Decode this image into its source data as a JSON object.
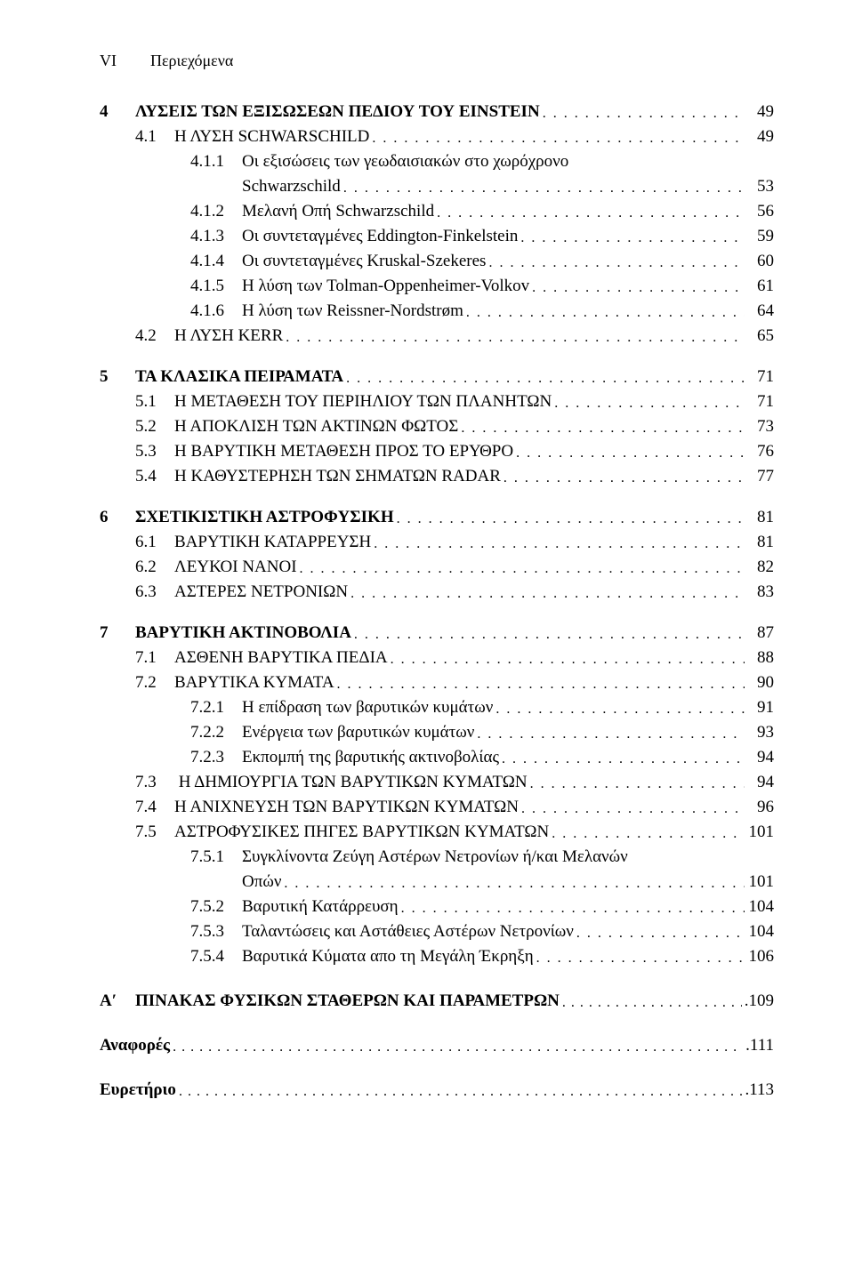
{
  "header": {
    "left": "VI",
    "right": "Περιεχόμενα"
  },
  "chapters": [
    {
      "num": "4",
      "title": "ΛΥΣΕΙΣ ΤΩΝ ΕΞΙΣΩΣΕΩΝ ΠΕΔΙΟΥ ΤΟΥ EINSTEIN",
      "page": "49",
      "sections": [
        {
          "num": "4.1",
          "title": "Η ΛΥΣΗ SCHWARSCHILD",
          "page": "49",
          "subs": [
            {
              "num": "4.1.1",
              "title": "Οι εξισώσεις των γεωδαισιακών στο χωρόχρονο",
              "cont": "Schwarzschild",
              "page": "53"
            },
            {
              "num": "4.1.2",
              "title": "Μελανή Οπή Schwarzschild",
              "page": "56"
            },
            {
              "num": "4.1.3",
              "title": "Οι συντεταγμένες Eddington-Finkelstein",
              "page": "59"
            },
            {
              "num": "4.1.4",
              "title": "Οι συντεταγμένες Kruskal-Szekeres",
              "page": "60"
            },
            {
              "num": "4.1.5",
              "title": "Η λύση των Tolman-Oppenheimer-Volkov",
              "page": "61"
            },
            {
              "num": "4.1.6",
              "title": "Η λύση των Reissner-Nordstrøm",
              "page": "64"
            }
          ]
        },
        {
          "num": "4.2",
          "title": "Η ΛΥΣΗ KERR",
          "page": "65"
        }
      ]
    },
    {
      "num": "5",
      "title": "ΤΑ ΚΛΑΣΙΚΑ ΠΕΙΡΑΜΑΤΑ",
      "page": "71",
      "sections": [
        {
          "num": "5.1",
          "title": "Η ΜΕΤΑΘΕΣΗ ΤΟΥ ΠΕΡΙΗΛΙΟΥ ΤΩΝ ΠΛΑΝΗΤΩΝ",
          "page": "71"
        },
        {
          "num": "5.2",
          "title": "Η ΑΠΟΚΛΙΣΗ ΤΩΝ ΑΚΤΙΝΩΝ ΦΩΤΟΣ",
          "page": "73"
        },
        {
          "num": "5.3",
          "title": "Η ΒΑΡΥΤΙΚΗ ΜΕΤΑΘΕΣΗ ΠΡΟΣ ΤΟ ΕΡΥΘΡΟ",
          "page": "76"
        },
        {
          "num": "5.4",
          "title": "Η ΚΑΘΥΣΤΕΡΗΣΗ ΤΩΝ ΣΗΜΑΤΩΝ RADAR",
          "page": "77"
        }
      ]
    },
    {
      "num": "6",
      "title": "ΣΧΕΤΙΚΙΣΤΙΚΗ ΑΣΤΡΟΦΥΣΙΚΗ",
      "page": "81",
      "sections": [
        {
          "num": "6.1",
          "title": "ΒΑΡΥΤΙΚΗ ΚΑΤΑΡΡΕΥΣΗ",
          "page": "81"
        },
        {
          "num": "6.2",
          "title": "ΛΕΥΚΟΙ ΝΑΝΟΙ",
          "page": "82"
        },
        {
          "num": "6.3",
          "title": "ΑΣΤΕΡΕΣ ΝΕΤΡΟΝΙΩΝ",
          "page": "83"
        }
      ]
    },
    {
      "num": "7",
      "title": "ΒΑΡΥΤΙΚΗ ΑΚΤΙΝΟΒΟΛΙΑ",
      "page": "87",
      "sections": [
        {
          "num": "7.1",
          "title": "ΑΣΘΕΝΗ ΒΑΡΥΤΙΚΑ ΠΕΔΙΑ",
          "page": "88"
        },
        {
          "num": "7.2",
          "title": "ΒΑΡΥΤΙΚΑ ΚΥΜΑΤΑ",
          "page": "90",
          "subs": [
            {
              "num": "7.2.1",
              "title": "Η επίδραση των βαρυτικών κυμάτων",
              "page": "91"
            },
            {
              "num": "7.2.2",
              "title": "Ενέργεια των βαρυτικών κυμάτων",
              "page": "93"
            },
            {
              "num": "7.2.3",
              "title": "Εκπομπή της βαρυτικής ακτινοβολίας",
              "page": "94"
            }
          ]
        },
        {
          "num": "7.3",
          "title": " Η ΔΗΜΙΟΥΡΓΙΑ ΤΩΝ ΒΑΡΥΤΙΚΩΝ ΚΥΜΑΤΩΝ",
          "page": "94"
        },
        {
          "num": "7.4",
          "title": "Η ΑΝΙΧΝΕΥΣΗ ΤΩΝ ΒΑΡΥΤΙΚΩΝ ΚΥΜΑΤΩΝ",
          "page": "96"
        },
        {
          "num": "7.5",
          "title": "ΑΣΤΡΟΦΥΣΙΚΕΣ ΠΗΓΕΣ ΒΑΡΥΤΙΚΩΝ ΚΥΜΑΤΩΝ",
          "page": "101",
          "subs": [
            {
              "num": "7.5.1",
              "title": "Συγκλίνοντα Ζεύγη Αστέρων Νετρονίων ή/και Μελανών",
              "cont": "Οπών",
              "page": "101"
            },
            {
              "num": "7.5.2",
              "title": "Βαρυτική Κατάρρευση",
              "page": "104"
            },
            {
              "num": "7.5.3",
              "title": "Ταλαντώσεις και Αστάθειες Αστέρων Νετρονίων",
              "page": "104"
            },
            {
              "num": "7.5.4",
              "title": "Βαρυτικά Κύματα απο τη Μεγάλη Έκρηξη",
              "page": "106"
            }
          ]
        }
      ]
    }
  ],
  "appendix": {
    "num": "Αʹ",
    "title": "ΠΙΝΑΚΑΣ ΦΥΣΙΚΩΝ ΣΤΑΘΕΡΩΝ ΚΑΙ ΠΑΡΑΜΕΤΡΩΝ",
    "page": "109"
  },
  "endmatter": [
    {
      "title": "Αναφορές",
      "page": "111"
    },
    {
      "title": "Ευρετήριο",
      "page": "113"
    }
  ]
}
